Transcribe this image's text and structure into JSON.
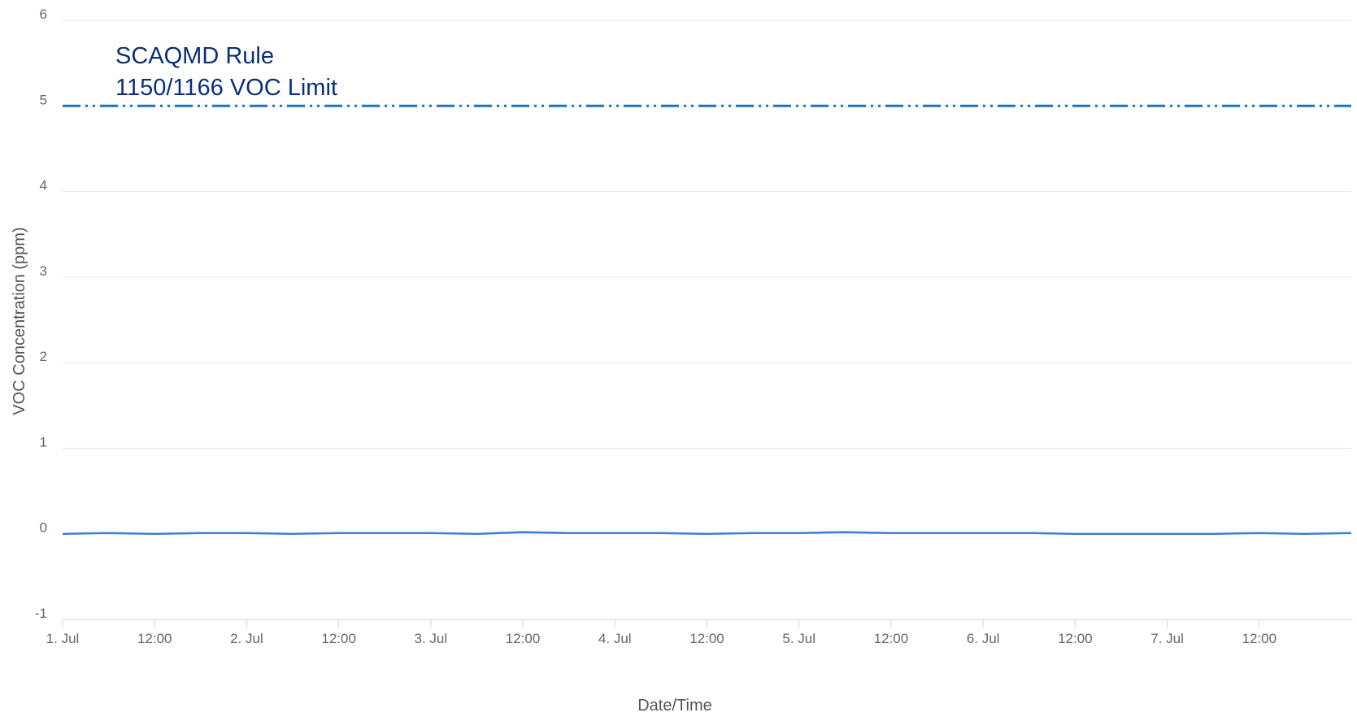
{
  "chart_data": {
    "type": "line",
    "xlabel": "Date/Time",
    "ylabel": "VOC Concentration (ppm)",
    "ylim": [
      -1,
      6
    ],
    "yticks": [
      "-1",
      "0",
      "1",
      "2",
      "3",
      "4",
      "5",
      "6"
    ],
    "xlim": [
      "2021-07-01 00:00",
      "2021-07-08 00:00"
    ],
    "xticks": [
      "1. Jul",
      "12:00",
      "2. Jul",
      "12:00",
      "3. Jul",
      "12:00",
      "4. Jul",
      "12:00",
      "5. Jul",
      "12:00",
      "6. Jul",
      "12:00",
      "7. Jul",
      "12:00"
    ],
    "grid": true,
    "legend": "none",
    "annotation": {
      "line1": "SCAQMD Rule",
      "line2": "1150/1166 VOC Limit"
    },
    "reference_line": {
      "value": 5,
      "style": "dash-dot",
      "color": "#1a75b9"
    },
    "series": [
      {
        "color": "#3b7dd8",
        "x_hours": [
          0,
          6,
          12,
          18,
          24,
          30,
          36,
          42,
          48,
          54,
          60,
          66,
          72,
          78,
          84,
          90,
          96,
          102,
          108,
          114,
          120,
          126,
          132,
          138,
          144,
          150,
          156,
          162,
          168
        ],
        "values": [
          0.0,
          0.01,
          0.0,
          0.01,
          0.01,
          0.0,
          0.01,
          0.01,
          0.01,
          0.0,
          0.02,
          0.01,
          0.01,
          0.01,
          0.0,
          0.01,
          0.01,
          0.02,
          0.01,
          0.01,
          0.01,
          0.01,
          0.0,
          0.0,
          0.0,
          0.0,
          0.01,
          0.0,
          0.01
        ]
      }
    ]
  },
  "colors": {
    "grid": "#e6e6e6",
    "axis": "#ccd6eb",
    "series": "#3b7dd8",
    "limit": "#1a75b9",
    "annotation": "#0b2f78"
  }
}
